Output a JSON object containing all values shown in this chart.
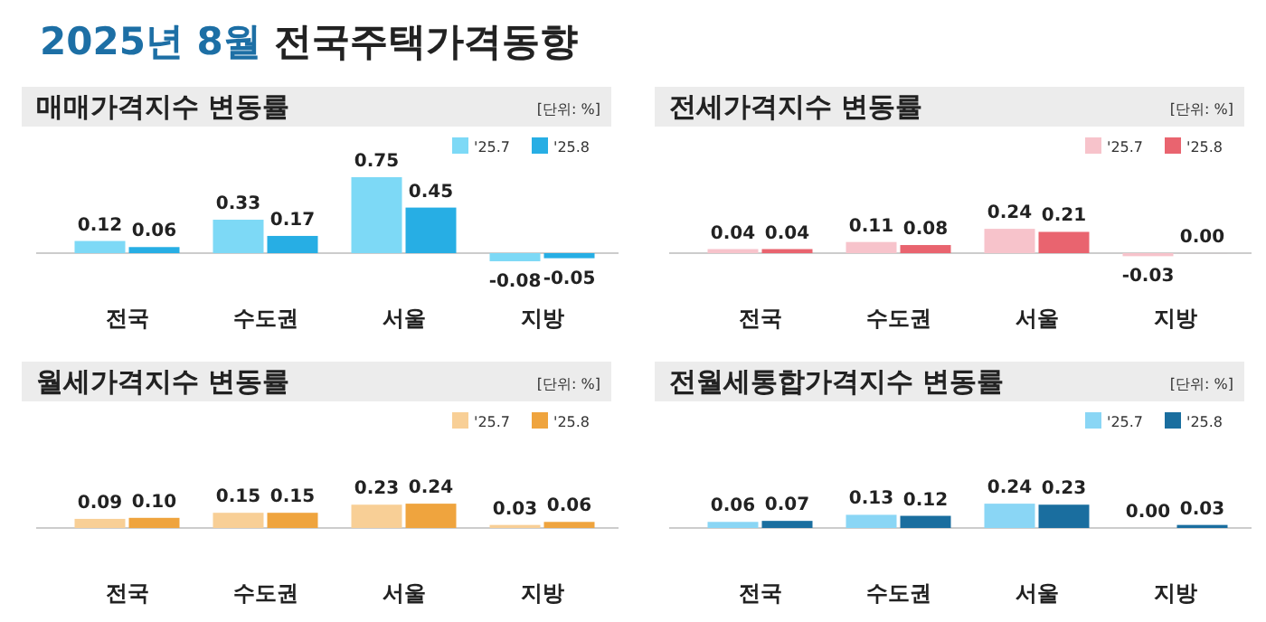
{
  "chart_data": [
    {
      "type": "bar",
      "title": "매매가격지수 변동률",
      "annotations": [
        "2025년 8월 전국주택가격동향",
        "[단위: %]"
      ],
      "categories": [
        "전국",
        "수도권",
        "서울",
        "지방"
      ],
      "legend": "top right",
      "series": [
        {
          "name": "'25.7",
          "color": "#7dd9f6",
          "values": [
            0.12,
            0.33,
            0.75,
            -0.08
          ],
          "value_labels": [
            "0.12",
            "0.33",
            "0.75",
            "-0.08"
          ]
        },
        {
          "name": "'25.8",
          "color": "#27aee4",
          "values": [
            0.06,
            0.17,
            0.45,
            -0.05
          ],
          "value_labels": [
            "0.06",
            "0.17",
            "0.45",
            "-0.05"
          ]
        }
      ]
    },
    {
      "type": "bar",
      "title": "전세가격지수 변동률",
      "annotations": [
        "[단위: %]"
      ],
      "categories": [
        "전국",
        "수도권",
        "서울",
        "지방"
      ],
      "legend": "top right",
      "series": [
        {
          "name": "'25.7",
          "color": "#f7c3cb",
          "values": [
            0.04,
            0.11,
            0.24,
            -0.03
          ],
          "value_labels": [
            "0.04",
            "0.11",
            "0.24",
            "-0.03"
          ]
        },
        {
          "name": "'25.8",
          "color": "#e9646f",
          "values": [
            0.04,
            0.08,
            0.21,
            0.0
          ],
          "value_labels": [
            "0.04",
            "0.08",
            "0.21",
            "0.00"
          ]
        }
      ]
    },
    {
      "type": "bar",
      "title": "월세가격지수 변동률",
      "annotations": [
        "[단위: %]"
      ],
      "categories": [
        "전국",
        "수도권",
        "서울",
        "지방"
      ],
      "legend": "top right",
      "series": [
        {
          "name": "'25.7",
          "color": "#f8cf96",
          "values": [
            0.09,
            0.15,
            0.23,
            0.03
          ],
          "value_labels": [
            "0.09",
            "0.15",
            "0.23",
            "0.03"
          ]
        },
        {
          "name": "'25.8",
          "color": "#efa43e",
          "values": [
            0.1,
            0.15,
            0.24,
            0.06
          ],
          "value_labels": [
            "0.10",
            "0.15",
            "0.24",
            "0.06"
          ]
        }
      ]
    },
    {
      "type": "bar",
      "title": "전월세통합가격지수 변동률",
      "annotations": [
        "[단위: %]"
      ],
      "categories": [
        "전국",
        "수도권",
        "서울",
        "지방"
      ],
      "legend": "top right",
      "series": [
        {
          "name": "'25.7",
          "color": "#8ad6f5",
          "values": [
            0.06,
            0.13,
            0.24,
            0.0
          ],
          "value_labels": [
            "0.06",
            "0.13",
            "0.24",
            "0.00"
          ]
        },
        {
          "name": "'25.8",
          "color": "#1a6e9f",
          "values": [
            0.07,
            0.12,
            0.23,
            0.03
          ],
          "value_labels": [
            "0.07",
            "0.12",
            "0.23",
            "0.03"
          ]
        }
      ]
    }
  ]
}
